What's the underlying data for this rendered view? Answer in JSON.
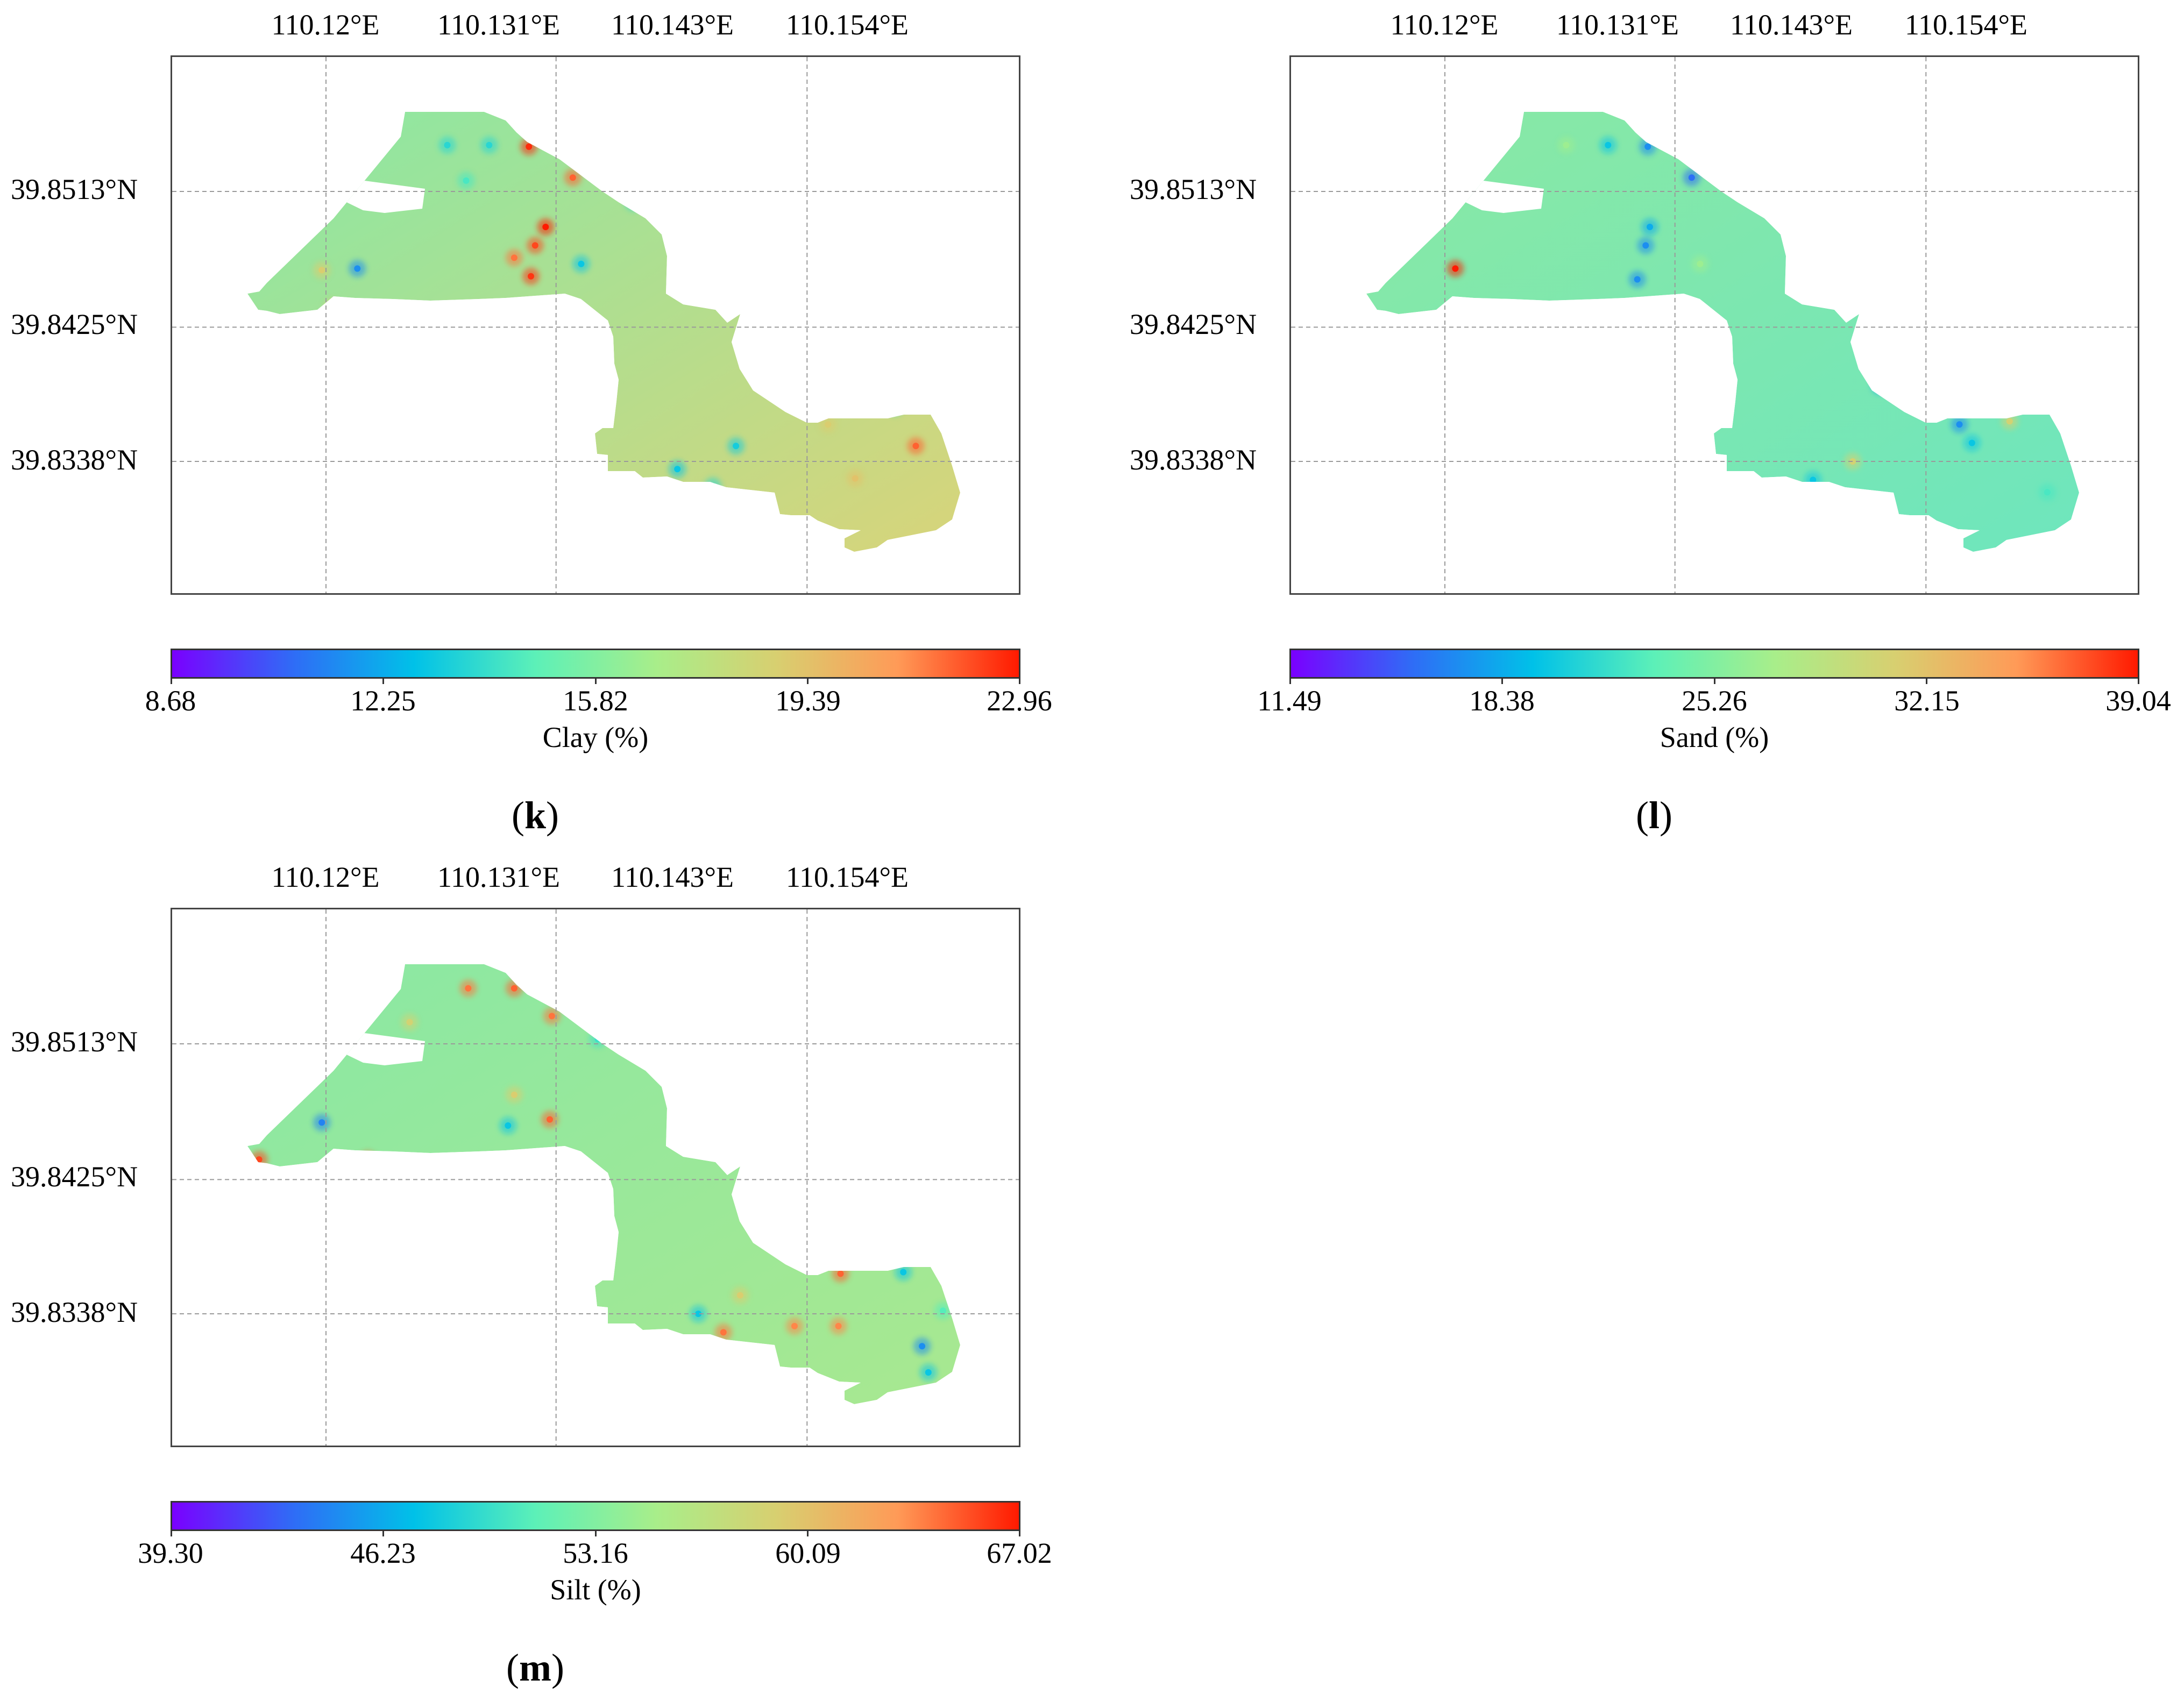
{
  "colors": {
    "colormap": [
      "#7a00ff",
      "#2f6cf6",
      "#00c1e8",
      "#5cf0b8",
      "#a8ee8a",
      "#d8cf70",
      "#ff9a57",
      "#ff1a00"
    ],
    "field_base": "#8ae8a4",
    "frame": "#444444",
    "grid": "#9a9a9a"
  },
  "lon_labels": [
    "110.12°E",
    "110.131°E",
    "110.143°E",
    "110.154°E"
  ],
  "lat_labels": [
    "39.8513°N",
    "39.8425°N",
    "39.8338°N"
  ],
  "panels": [
    {
      "id": "k",
      "letter": "k",
      "colorbar_label": "Clay (%)",
      "colorbar_ticks": [
        "8.68",
        "12.25",
        "15.82",
        "19.39",
        "22.96"
      ],
      "tint": "#d8d47a",
      "hotspots": [
        {
          "lon": 110.1258,
          "lat": 39.8543,
          "t": 0.35
        },
        {
          "lon": 110.1278,
          "lat": 39.8543,
          "t": 0.35
        },
        {
          "lon": 110.1297,
          "lat": 39.8542,
          "t": 0.98
        },
        {
          "lon": 110.1318,
          "lat": 39.8522,
          "t": 0.92
        },
        {
          "lon": 110.1267,
          "lat": 39.852,
          "t": 0.4
        },
        {
          "lon": 110.1305,
          "lat": 39.849,
          "t": 1.0
        },
        {
          "lon": 110.13,
          "lat": 39.8478,
          "t": 0.95
        },
        {
          "lon": 110.1298,
          "lat": 39.8458,
          "t": 0.97
        },
        {
          "lon": 110.129,
          "lat": 39.847,
          "t": 0.9
        },
        {
          "lon": 110.1322,
          "lat": 39.8466,
          "t": 0.3
        },
        {
          "lon": 110.1347,
          "lat": 39.8506,
          "t": 0.35
        },
        {
          "lon": 110.136,
          "lat": 39.8523,
          "t": 0.38
        },
        {
          "lon": 110.139,
          "lat": 39.8488,
          "t": 0.4
        },
        {
          "lon": 110.1368,
          "lat": 39.8482,
          "t": 0.42
        },
        {
          "lon": 110.1418,
          "lat": 39.8478,
          "t": 0.38
        },
        {
          "lon": 110.143,
          "lat": 39.8462,
          "t": 0.2
        },
        {
          "lon": 110.1413,
          "lat": 39.8453,
          "t": 0.62
        },
        {
          "lon": 110.1215,
          "lat": 39.8463,
          "t": 0.2
        },
        {
          "lon": 110.1198,
          "lat": 39.8462,
          "t": 0.72
        },
        {
          "lon": 110.1203,
          "lat": 39.8438,
          "t": 0.72
        },
        {
          "lon": 110.1153,
          "lat": 39.8433,
          "t": 0.1
        },
        {
          "lon": 110.1426,
          "lat": 39.8412,
          "t": 0.68
        },
        {
          "lon": 110.1408,
          "lat": 39.8396,
          "t": 0.72
        },
        {
          "lon": 110.1436,
          "lat": 39.8392,
          "t": 0.7
        },
        {
          "lon": 110.1472,
          "lat": 39.8373,
          "t": 0.4
        },
        {
          "lon": 110.144,
          "lat": 39.8362,
          "t": 0.72
        },
        {
          "lon": 110.1396,
          "lat": 39.8348,
          "t": 0.32
        },
        {
          "lon": 110.1368,
          "lat": 39.8333,
          "t": 0.3
        },
        {
          "lon": 110.1385,
          "lat": 39.8322,
          "t": 0.35
        },
        {
          "lon": 110.1482,
          "lat": 39.8348,
          "t": 0.92
        },
        {
          "lon": 110.1453,
          "lat": 39.8327,
          "t": 0.75
        },
        {
          "lon": 110.151,
          "lat": 39.8323,
          "t": 0.95
        },
        {
          "lon": 110.1537,
          "lat": 39.8342,
          "t": 0.9
        },
        {
          "lon": 110.151,
          "lat": 39.8297,
          "t": 0.85
        },
        {
          "lon": 110.1538,
          "lat": 39.8322,
          "t": 0.97
        },
        {
          "lon": 110.1575,
          "lat": 39.8333,
          "t": 0.97
        },
        {
          "lon": 110.1573,
          "lat": 39.8348,
          "t": 0.75
        },
        {
          "lon": 110.1602,
          "lat": 39.8342,
          "t": 0.4
        },
        {
          "lon": 110.1602,
          "lat": 39.8322,
          "t": 0.35
        }
      ]
    },
    {
      "id": "l",
      "letter": "l",
      "colorbar_label": "Sand (%)",
      "colorbar_ticks": [
        "11.49",
        "18.38",
        "25.26",
        "32.15",
        "39.04"
      ],
      "tint": "#6ee6bd",
      "hotspots": [
        {
          "lon": 110.1258,
          "lat": 39.8543,
          "t": 0.55
        },
        {
          "lon": 110.1278,
          "lat": 39.8543,
          "t": 0.3
        },
        {
          "lon": 110.1297,
          "lat": 39.8542,
          "t": 0.2
        },
        {
          "lon": 110.1318,
          "lat": 39.8522,
          "t": 0.15
        },
        {
          "lon": 110.136,
          "lat": 39.8523,
          "t": 0.65
        },
        {
          "lon": 110.1298,
          "lat": 39.849,
          "t": 0.25
        },
        {
          "lon": 110.1296,
          "lat": 39.8478,
          "t": 0.2
        },
        {
          "lon": 110.1292,
          "lat": 39.8456,
          "t": 0.2
        },
        {
          "lon": 110.1322,
          "lat": 39.8466,
          "t": 0.55
        },
        {
          "lon": 110.139,
          "lat": 39.8488,
          "t": 0.35
        },
        {
          "lon": 110.138,
          "lat": 39.8505,
          "t": 0.68
        },
        {
          "lon": 110.1368,
          "lat": 39.8482,
          "t": 0.65
        },
        {
          "lon": 110.1418,
          "lat": 39.8468,
          "t": 0.68
        },
        {
          "lon": 110.143,
          "lat": 39.8462,
          "t": 0.3
        },
        {
          "lon": 110.1436,
          "lat": 39.8452,
          "t": 0.1
        },
        {
          "lon": 110.1205,
          "lat": 39.8463,
          "t": 1.0
        },
        {
          "lon": 110.122,
          "lat": 39.8434,
          "t": 0.25
        },
        {
          "lon": 110.1436,
          "lat": 39.8418,
          "t": 0.97
        },
        {
          "lon": 110.1428,
          "lat": 39.8404,
          "t": 0.62
        },
        {
          "lon": 110.1408,
          "lat": 39.8387,
          "t": 0.25
        },
        {
          "lon": 110.1438,
          "lat": 39.8378,
          "t": 0.6
        },
        {
          "lon": 110.1446,
          "lat": 39.8362,
          "t": 0.2
        },
        {
          "lon": 110.147,
          "lat": 39.8364,
          "t": 0.7
        },
        {
          "lon": 110.1452,
          "lat": 39.835,
          "t": 0.3
        },
        {
          "lon": 110.1395,
          "lat": 39.8338,
          "t": 0.7
        },
        {
          "lon": 110.1376,
          "lat": 39.8326,
          "t": 0.3
        },
        {
          "lon": 110.1536,
          "lat": 39.8345,
          "t": 0.12
        },
        {
          "lon": 110.1552,
          "lat": 39.8323,
          "t": 0.62
        },
        {
          "lon": 110.1558,
          "lat": 39.8308,
          "t": 0.2
        },
        {
          "lon": 110.1488,
          "lat": 39.8318,
          "t": 0.4
        }
      ]
    },
    {
      "id": "m",
      "letter": "m",
      "colorbar_label": "Silt (%)",
      "colorbar_ticks": [
        "39.30",
        "46.23",
        "53.16",
        "60.09",
        "67.02"
      ],
      "tint": "#a8e890",
      "hotspots": [
        {
          "lon": 110.1268,
          "lat": 39.8549,
          "t": 0.9
        },
        {
          "lon": 110.129,
          "lat": 39.8549,
          "t": 0.92
        },
        {
          "lon": 110.1308,
          "lat": 39.8531,
          "t": 0.9
        },
        {
          "lon": 110.124,
          "lat": 39.8527,
          "t": 0.7
        },
        {
          "lon": 110.133,
          "lat": 39.8516,
          "t": 0.38
        },
        {
          "lon": 110.129,
          "lat": 39.848,
          "t": 0.72
        },
        {
          "lon": 110.1307,
          "lat": 39.8464,
          "t": 0.92
        },
        {
          "lon": 110.1287,
          "lat": 39.846,
          "t": 0.3
        },
        {
          "lon": 110.1356,
          "lat": 39.8508,
          "t": 0.3
        },
        {
          "lon": 110.1373,
          "lat": 39.8484,
          "t": 1.0
        },
        {
          "lon": 110.1393,
          "lat": 39.8478,
          "t": 0.5
        },
        {
          "lon": 110.1405,
          "lat": 39.8462,
          "t": 0.4
        },
        {
          "lon": 110.1428,
          "lat": 39.8462,
          "t": 0.95
        },
        {
          "lon": 110.1433,
          "lat": 39.8456,
          "t": 0.9
        },
        {
          "lon": 110.1198,
          "lat": 39.8462,
          "t": 0.18
        },
        {
          "lon": 110.122,
          "lat": 39.8438,
          "t": 0.92
        },
        {
          "lon": 110.1168,
          "lat": 39.8438,
          "t": 0.95
        },
        {
          "lon": 110.1436,
          "lat": 39.843,
          "t": 0.25
        },
        {
          "lon": 110.1446,
          "lat": 39.8416,
          "t": 0.2
        },
        {
          "lon": 110.1425,
          "lat": 39.8405,
          "t": 0.2
        },
        {
          "lon": 110.145,
          "lat": 39.8392,
          "t": 0.35
        },
        {
          "lon": 110.1428,
          "lat": 39.8382,
          "t": 0.88
        },
        {
          "lon": 110.1446,
          "lat": 39.8364,
          "t": 0.92
        },
        {
          "lon": 110.1476,
          "lat": 39.8365,
          "t": 0.3
        },
        {
          "lon": 110.1398,
          "lat": 39.835,
          "t": 0.72
        },
        {
          "lon": 110.1378,
          "lat": 39.8338,
          "t": 0.3
        },
        {
          "lon": 110.139,
          "lat": 39.8326,
          "t": 0.9
        },
        {
          "lon": 110.1424,
          "lat": 39.833,
          "t": 0.88
        },
        {
          "lon": 110.1445,
          "lat": 39.833,
          "t": 0.88
        },
        {
          "lon": 110.1495,
          "lat": 39.834,
          "t": 0.42
        },
        {
          "lon": 110.1485,
          "lat": 39.8317,
          "t": 0.2
        },
        {
          "lon": 110.1488,
          "lat": 39.83,
          "t": 0.3
        },
        {
          "lon": 110.1552,
          "lat": 39.8343,
          "t": 0.95
        },
        {
          "lon": 110.1573,
          "lat": 39.834,
          "t": 0.95
        },
        {
          "lon": 110.1555,
          "lat": 39.8318,
          "t": 0.4
        },
        {
          "lon": 110.1545,
          "lat": 39.8302,
          "t": 0.35
        }
      ]
    }
  ]
}
